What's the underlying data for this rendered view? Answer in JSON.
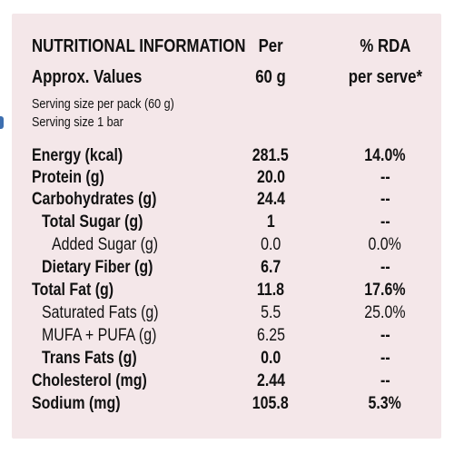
{
  "header": {
    "title": "NUTRITIONAL INFORMATION",
    "approx": "Approx. Values",
    "per_label": "Per",
    "per_amount": "60 g",
    "rda_label": "% RDA",
    "rda_sub": "per serve*"
  },
  "serving": {
    "line1": "Serving size per pack (60 g)",
    "line2": "Serving size 1 bar"
  },
  "rows": [
    {
      "name": "Energy (kcal)",
      "value": "281.5",
      "rda": "14.0%"
    },
    {
      "name": "Protein (g)",
      "value": "20.0",
      "rda": "--"
    },
    {
      "name": "Carbohydrates (g)",
      "value": "24.4",
      "rda": "--"
    },
    {
      "name": "Total Sugar (g)",
      "value": "1",
      "rda": "--"
    },
    {
      "name": "Added Sugar (g)",
      "value": "0.0",
      "rda": "0.0%"
    },
    {
      "name": "Dietary Fiber (g)",
      "value": "6.7",
      "rda": "--"
    },
    {
      "name": "Total Fat (g)",
      "value": "11.8",
      "rda": "17.6%"
    },
    {
      "name": "Saturated Fats (g)",
      "value": "5.5",
      "rda": "25.0%"
    },
    {
      "name": "MUFA + PUFA (g)",
      "value": "6.25",
      "rda": "--"
    },
    {
      "name": "Trans Fats (g)",
      "value": "0.0",
      "rda": "--"
    },
    {
      "name": "Cholesterol (mg)",
      "value": "2.44",
      "rda": "--"
    },
    {
      "name": "Sodium (mg)",
      "value": "105.8",
      "rda": "5.3%"
    }
  ],
  "colors": {
    "panel": "#f4e7e9",
    "text": "#111111",
    "edge_mark": "#3d6fb0"
  }
}
